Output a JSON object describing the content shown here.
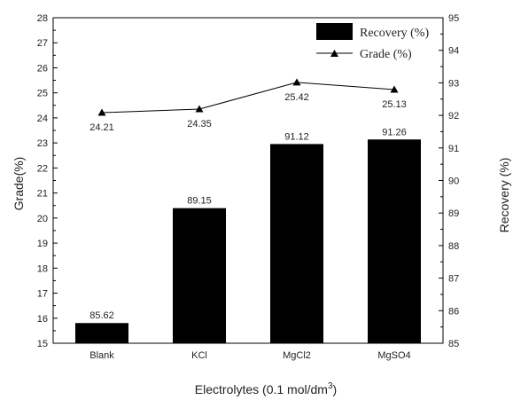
{
  "chart_data": {
    "type": "bar",
    "categories": [
      "Blank",
      "KCl",
      "MgCl2",
      "MgSO4"
    ],
    "xlabel": "Electrolytes (0.1 mol/dm",
    "xlabel_sup": "3",
    "xlabel_end": ")",
    "y_left_label": "Grade(%)",
    "y_right_label": "Recovery (%)",
    "y_left_range": [
      15,
      28
    ],
    "y_right_range": [
      85,
      95
    ],
    "y_left_ticks": [
      15,
      16,
      17,
      18,
      19,
      20,
      21,
      22,
      23,
      24,
      25,
      26,
      27,
      28
    ],
    "y_right_ticks": [
      85,
      86,
      87,
      88,
      89,
      90,
      91,
      92,
      93,
      94,
      95
    ],
    "grid": false,
    "legend_position": "top-right",
    "series": [
      {
        "name": "Recovery (%)",
        "type": "bar",
        "axis": "right",
        "values": [
          85.62,
          89.15,
          91.12,
          91.26
        ],
        "labels": [
          "85.62",
          "89.15",
          "91.12",
          "91.26"
        ],
        "color": "#000000"
      },
      {
        "name": "Grade (%)",
        "type": "line",
        "axis": "left",
        "marker": "triangle",
        "values": [
          24.21,
          24.35,
          25.42,
          25.13
        ],
        "labels": [
          "24.21",
          "24.35",
          "25.42",
          "25.13"
        ],
        "color": "#000000"
      }
    ]
  }
}
